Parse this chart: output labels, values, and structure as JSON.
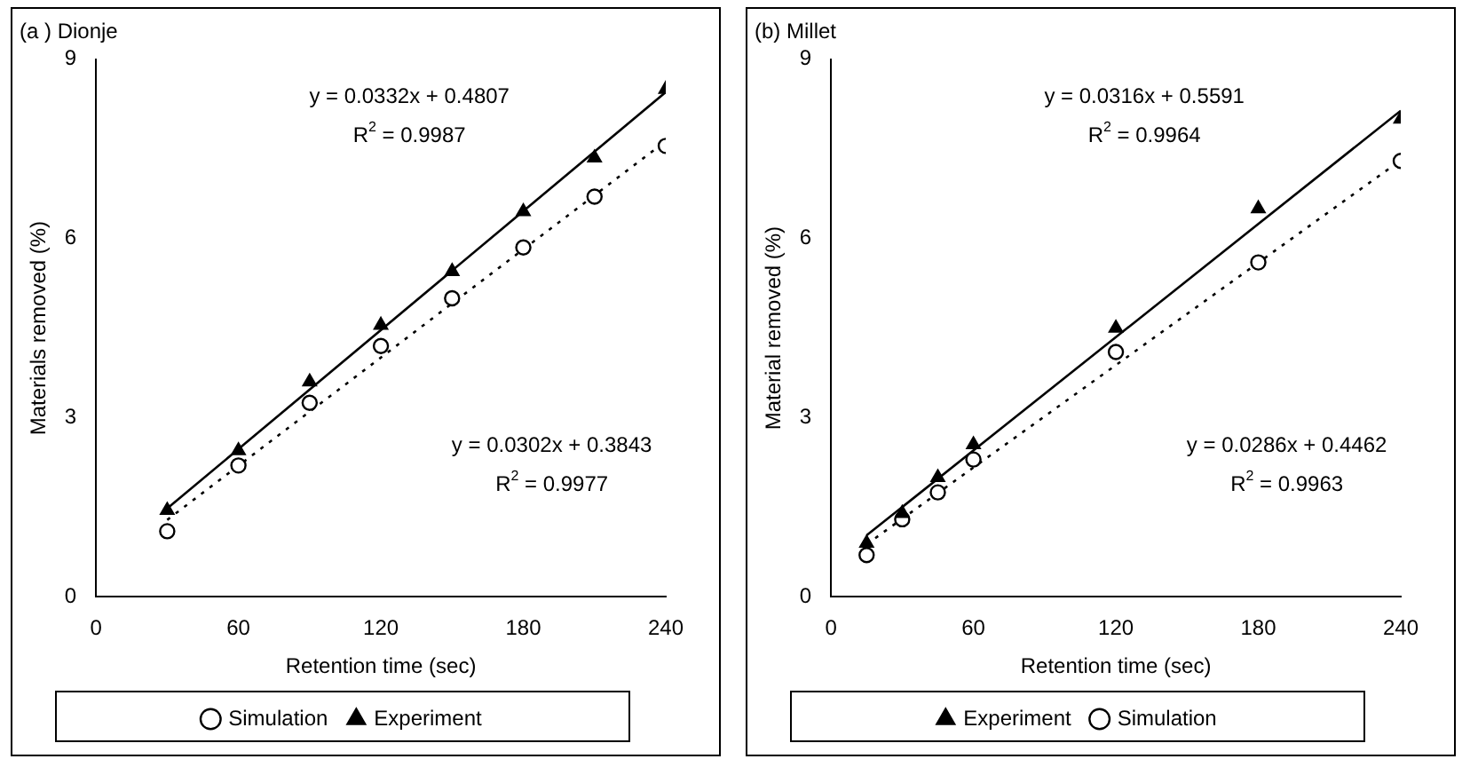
{
  "chart_data": [
    {
      "type": "scatter",
      "title": "(a ) Dionje",
      "xlabel": "Retention time (sec)",
      "ylabel": "Materials removed (%)",
      "xlim": [
        0,
        240
      ],
      "xticks": [
        0,
        60,
        120,
        180,
        240
      ],
      "ylim": [
        0,
        9
      ],
      "yticks": [
        0,
        3,
        6,
        9
      ],
      "grid": false,
      "legend": "bottom",
      "series": [
        {
          "name": "Simulation",
          "color": "#000000",
          "marker": "circle",
          "x": [
            30,
            60,
            90,
            120,
            150,
            180,
            210,
            240
          ],
          "values": [
            1.1,
            2.2,
            3.25,
            4.2,
            5.0,
            5.85,
            6.7,
            7.55
          ]
        },
        {
          "name": "Experiment",
          "color": "#000000",
          "marker": "triangle",
          "x": [
            30,
            60,
            90,
            120,
            150,
            180,
            210,
            240
          ],
          "values": [
            1.45,
            2.45,
            3.6,
            4.55,
            5.45,
            6.45,
            7.35,
            8.5
          ]
        },
        {
          "type": "line",
          "color": "#000000",
          "line_style": "solid",
          "marker": "none",
          "x": [
            30,
            240
          ],
          "values": [
            1.48,
            8.45
          ]
        },
        {
          "type": "line",
          "color": "#000000",
          "line_style": "dotted",
          "marker": "none",
          "x": [
            30,
            240
          ],
          "values": [
            1.29,
            7.63
          ]
        }
      ],
      "annotations": [
        "y = 0.0332x + 0.4807",
        "R$^{2}$ = 0.9987",
        "y = 0.0302x + 0.3843",
        "R$^{2}$ = 0.9977"
      ]
    },
    {
      "type": "scatter",
      "title": "(b) Millet",
      "xlabel": "Retention time (sec)",
      "ylabel": "Material removed (%)",
      "xlim": [
        0,
        240
      ],
      "xticks": [
        0,
        60,
        120,
        180,
        240
      ],
      "ylim": [
        0,
        9
      ],
      "yticks": [
        0,
        3,
        6,
        9
      ],
      "grid": false,
      "legend": "bottom",
      "series": [
        {
          "name": "Experiment",
          "color": "#000000",
          "marker": "triangle",
          "x": [
            15,
            30,
            45,
            60,
            120,
            180,
            240
          ],
          "values": [
            0.9,
            1.4,
            2.0,
            2.55,
            4.5,
            6.5,
            8.0
          ]
        },
        {
          "name": "Simulation",
          "color": "#000000",
          "marker": "circle",
          "x": [
            15,
            30,
            45,
            60,
            120,
            180,
            240
          ],
          "values": [
            0.7,
            1.3,
            1.75,
            2.3,
            4.1,
            5.6,
            7.3
          ]
        },
        {
          "type": "line",
          "color": "#000000",
          "line_style": "solid",
          "marker": "none",
          "x": [
            15,
            240
          ],
          "values": [
            1.03,
            8.14
          ]
        },
        {
          "type": "line",
          "color": "#000000",
          "line_style": "dotted",
          "marker": "none",
          "x": [
            15,
            240
          ],
          "values": [
            0.88,
            7.31
          ]
        }
      ],
      "annotations": [
        "y = 0.0316x + 0.5591",
        "R$^{2}$ = 0.9964",
        "y = 0.0286x + 0.4462",
        "R$^{2}$ = 0.9963"
      ]
    }
  ]
}
